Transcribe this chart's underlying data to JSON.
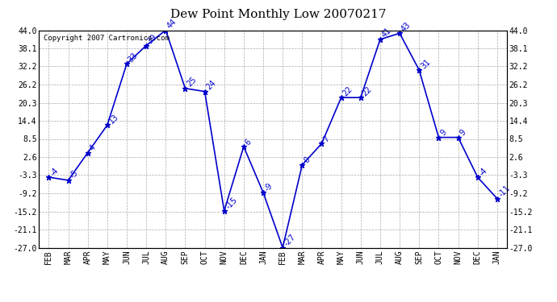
{
  "title": "Dew Point Monthly Low 20070217",
  "copyright": "Copyright 2007 Cartronics.com",
  "x_labels": [
    "FEB",
    "MAR",
    "APR",
    "MAY",
    "JUN",
    "JUL",
    "AUG",
    "SEP",
    "OCT",
    "NOV",
    "DEC",
    "JAN",
    "FEB",
    "MAR",
    "APR",
    "MAY",
    "JUN",
    "JUL",
    "AUG",
    "SEP",
    "OCT",
    "NOV",
    "DEC",
    "JAN"
  ],
  "y_values": [
    -4,
    -5,
    4,
    13,
    33,
    39,
    44,
    25,
    24,
    -15,
    6,
    -9,
    -27,
    0,
    7,
    22,
    22,
    41,
    43,
    31,
    9,
    9,
    -4,
    -11
  ],
  "y_ticks": [
    44.0,
    38.1,
    32.2,
    26.2,
    20.3,
    14.4,
    8.5,
    2.6,
    -3.3,
    -9.2,
    -15.2,
    -21.1,
    -27.0
  ],
  "line_color": "#0000cc",
  "marker_color": "#0000cc",
  "bg_color": "#ffffff",
  "plot_bg_color": "#ffffff",
  "grid_color": "#aaaaaa",
  "title_fontsize": 11,
  "tick_fontsize": 7,
  "label_fontsize": 7,
  "copyright_fontsize": 6.5,
  "ylim": [
    -27.0,
    44.0
  ]
}
